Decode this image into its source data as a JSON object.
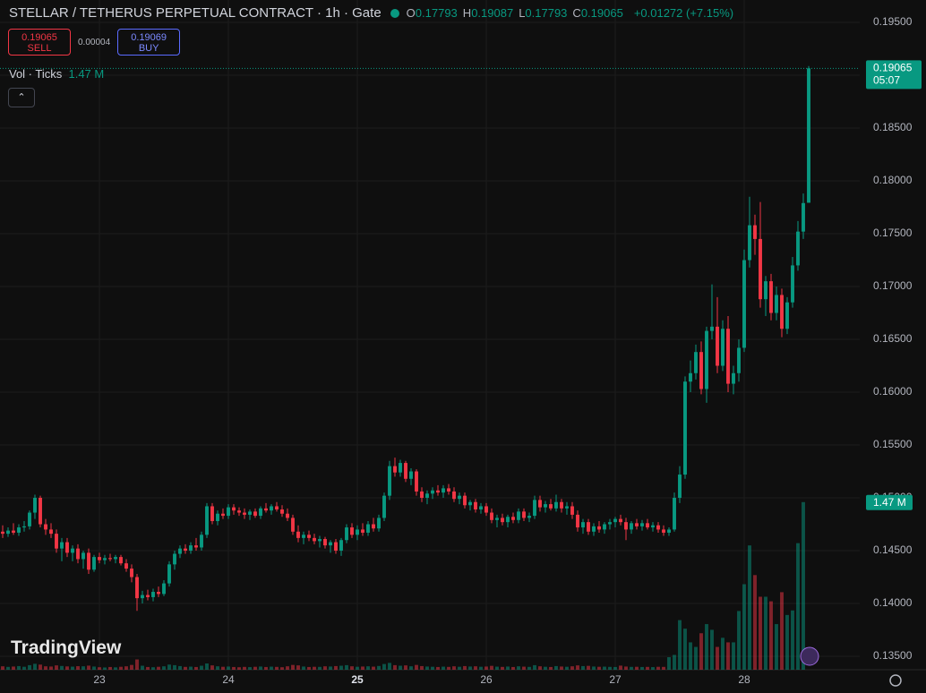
{
  "header": {
    "symbol": "STELLAR / TETHERUS PERPETUAL CONTRACT · 1h · Gate",
    "ohlc": [
      {
        "label": "O",
        "value": 0.17793
      },
      {
        "label": "H",
        "value": 0.19087
      },
      {
        "label": "L",
        "value": 0.17793
      },
      {
        "label": "C",
        "value": 0.19065
      }
    ],
    "change": "+0.01272 (+7.15%)"
  },
  "trade": {
    "sell_price": 0.19065,
    "sell_label": "SELL",
    "spread": 4e-05,
    "buy_price": 0.19069,
    "buy_label": "BUY"
  },
  "volume_legend": {
    "label": "Vol · Ticks",
    "value": "1.47 M"
  },
  "watermark": "TradingView",
  "chart_data": {
    "type": "candlestick",
    "up_color": "#089981",
    "down_color": "#f23645",
    "xlim": [
      -0.5,
      159.5
    ],
    "xticks": [
      {
        "value": 18,
        "label": "23"
      },
      {
        "value": 42,
        "label": "24"
      },
      {
        "value": 66,
        "label": "25"
      },
      {
        "value": 90,
        "label": "26"
      },
      {
        "value": 114,
        "label": "27"
      },
      {
        "value": 138,
        "label": "28"
      }
    ],
    "ylim": [
      0.13373,
      0.19712
    ],
    "yticks": [
      {
        "value": 0.135,
        "label": "0.13500"
      },
      {
        "value": 0.14,
        "label": "0.14000"
      },
      {
        "value": 0.145,
        "label": "0.14500"
      },
      {
        "value": 0.15,
        "label": "0.15000"
      },
      {
        "value": 0.155,
        "label": "0.15500"
      },
      {
        "value": 0.16,
        "label": "0.16000"
      },
      {
        "value": 0.165,
        "label": "0.16500"
      },
      {
        "value": 0.17,
        "label": "0.17000"
      },
      {
        "value": 0.175,
        "label": "0.17500"
      },
      {
        "value": 0.18,
        "label": "0.18000"
      },
      {
        "value": 0.185,
        "label": "0.18500"
      },
      {
        "value": 0.19,
        "label": "0.19000"
      },
      {
        "value": 0.195,
        "label": "0.19500"
      }
    ],
    "grid": true,
    "vlim": [
      0,
      3400000
    ],
    "last_price": 0.19065,
    "countdown": "05:07",
    "last_volume_label": "1.47 M",
    "ohlc": [
      [
        0.1468,
        0.1474,
        0.1462,
        0.1466
      ],
      [
        0.1466,
        0.1472,
        0.1463,
        0.1469
      ],
      [
        0.1469,
        0.1476,
        0.1465,
        0.1467
      ],
      [
        0.1467,
        0.1475,
        0.1464,
        0.1472
      ],
      [
        0.1472,
        0.1478,
        0.1468,
        0.1473
      ],
      [
        0.1473,
        0.1488,
        0.147,
        0.1486
      ],
      [
        0.1486,
        0.1503,
        0.148,
        0.15
      ],
      [
        0.15,
        0.1502,
        0.1472,
        0.1475
      ],
      [
        0.1475,
        0.148,
        0.1465,
        0.147
      ],
      [
        0.147,
        0.1476,
        0.1462,
        0.1466
      ],
      [
        0.1466,
        0.147,
        0.1448,
        0.1452
      ],
      [
        0.1452,
        0.1462,
        0.144,
        0.1458
      ],
      [
        0.1458,
        0.1462,
        0.1444,
        0.1448
      ],
      [
        0.1448,
        0.1455,
        0.144,
        0.1452
      ],
      [
        0.1452,
        0.1456,
        0.1438,
        0.1442
      ],
      [
        0.1442,
        0.145,
        0.1433,
        0.1448
      ],
      [
        0.1448,
        0.1452,
        0.1428,
        0.1432
      ],
      [
        0.1432,
        0.1446,
        0.143,
        0.1444
      ],
      [
        0.1444,
        0.1448,
        0.1438,
        0.1441
      ],
      [
        0.1441,
        0.1446,
        0.1437,
        0.1443
      ],
      [
        0.1443,
        0.1447,
        0.144,
        0.1442
      ],
      [
        0.1442,
        0.1446,
        0.1438,
        0.1444
      ],
      [
        0.1444,
        0.1446,
        0.1436,
        0.1438
      ],
      [
        0.1438,
        0.1442,
        0.143,
        0.1433
      ],
      [
        0.1433,
        0.1437,
        0.142,
        0.1425
      ],
      [
        0.1425,
        0.1428,
        0.1393,
        0.1405
      ],
      [
        0.1405,
        0.1412,
        0.14,
        0.1408
      ],
      [
        0.1408,
        0.1413,
        0.1403,
        0.1406
      ],
      [
        0.1406,
        0.1414,
        0.1402,
        0.1411
      ],
      [
        0.1411,
        0.1416,
        0.1406,
        0.1409
      ],
      [
        0.1409,
        0.1422,
        0.1407,
        0.1419
      ],
      [
        0.1419,
        0.144,
        0.1416,
        0.1437
      ],
      [
        0.1437,
        0.145,
        0.1432,
        0.1447
      ],
      [
        0.1447,
        0.1455,
        0.1443,
        0.1452
      ],
      [
        0.1452,
        0.1456,
        0.1447,
        0.145
      ],
      [
        0.145,
        0.1458,
        0.1447,
        0.1455
      ],
      [
        0.1455,
        0.1462,
        0.145,
        0.1453
      ],
      [
        0.1453,
        0.1468,
        0.145,
        0.1465
      ],
      [
        0.1465,
        0.1495,
        0.1462,
        0.1492
      ],
      [
        0.1492,
        0.1495,
        0.1475,
        0.1478
      ],
      [
        0.1478,
        0.1488,
        0.1474,
        0.1485
      ],
      [
        0.1485,
        0.149,
        0.148,
        0.1483
      ],
      [
        0.1483,
        0.1494,
        0.148,
        0.1491
      ],
      [
        0.1491,
        0.1494,
        0.1484,
        0.1488
      ],
      [
        0.1488,
        0.1491,
        0.1483,
        0.1486
      ],
      [
        0.1486,
        0.149,
        0.148,
        0.1484
      ],
      [
        0.1484,
        0.1489,
        0.1479,
        0.1487
      ],
      [
        0.1487,
        0.149,
        0.1481,
        0.1483
      ],
      [
        0.1483,
        0.1492,
        0.148,
        0.149
      ],
      [
        0.149,
        0.1495,
        0.1486,
        0.1488
      ],
      [
        0.1488,
        0.1494,
        0.1484,
        0.1492
      ],
      [
        0.1492,
        0.1496,
        0.1487,
        0.1489
      ],
      [
        0.1489,
        0.1493,
        0.1482,
        0.1485
      ],
      [
        0.1485,
        0.149,
        0.1478,
        0.1481
      ],
      [
        0.1481,
        0.1484,
        0.1465,
        0.1468
      ],
      [
        0.1468,
        0.1474,
        0.1458,
        0.1462
      ],
      [
        0.1462,
        0.1468,
        0.1456,
        0.1465
      ],
      [
        0.1465,
        0.1469,
        0.1459,
        0.1462
      ],
      [
        0.1462,
        0.1466,
        0.1456,
        0.1459
      ],
      [
        0.1459,
        0.1464,
        0.1453,
        0.1461
      ],
      [
        0.1461,
        0.1463,
        0.1452,
        0.1455
      ],
      [
        0.1455,
        0.146,
        0.1448,
        0.1458
      ],
      [
        0.1458,
        0.1461,
        0.1447,
        0.145
      ],
      [
        0.145,
        0.1462,
        0.1445,
        0.146
      ],
      [
        0.146,
        0.1475,
        0.1457,
        0.1472
      ],
      [
        0.1472,
        0.1476,
        0.1462,
        0.1465
      ],
      [
        0.1465,
        0.1474,
        0.146,
        0.147
      ],
      [
        0.147,
        0.1476,
        0.1464,
        0.1467
      ],
      [
        0.1467,
        0.1478,
        0.1464,
        0.1475
      ],
      [
        0.1475,
        0.1481,
        0.1468,
        0.1471
      ],
      [
        0.1471,
        0.1484,
        0.1468,
        0.1481
      ],
      [
        0.1481,
        0.1505,
        0.1478,
        0.1502
      ],
      [
        0.1502,
        0.1535,
        0.1498,
        0.153
      ],
      [
        0.153,
        0.1538,
        0.152,
        0.1524
      ],
      [
        0.1524,
        0.1536,
        0.152,
        0.1533
      ],
      [
        0.1533,
        0.1535,
        0.1515,
        0.1518
      ],
      [
        0.1518,
        0.1528,
        0.1512,
        0.1525
      ],
      [
        0.1525,
        0.1527,
        0.1502,
        0.1506
      ],
      [
        0.1506,
        0.151,
        0.1496,
        0.15
      ],
      [
        0.15,
        0.1507,
        0.1494,
        0.1504
      ],
      [
        0.1504,
        0.151,
        0.1499,
        0.1507
      ],
      [
        0.1507,
        0.1512,
        0.1502,
        0.1505
      ],
      [
        0.1505,
        0.1512,
        0.15,
        0.1509
      ],
      [
        0.1509,
        0.1513,
        0.1503,
        0.1506
      ],
      [
        0.1506,
        0.151,
        0.1496,
        0.1499
      ],
      [
        0.1499,
        0.1505,
        0.1494,
        0.1502
      ],
      [
        0.1502,
        0.1505,
        0.149,
        0.1493
      ],
      [
        0.1493,
        0.1498,
        0.1488,
        0.1496
      ],
      [
        0.1496,
        0.1499,
        0.1486,
        0.1489
      ],
      [
        0.1489,
        0.1495,
        0.1485,
        0.1492
      ],
      [
        0.1492,
        0.1495,
        0.1483,
        0.1486
      ],
      [
        0.1486,
        0.149,
        0.1476,
        0.1479
      ],
      [
        0.1479,
        0.1484,
        0.1472,
        0.1481
      ],
      [
        0.1481,
        0.1485,
        0.1474,
        0.1477
      ],
      [
        0.1477,
        0.1484,
        0.1472,
        0.1482
      ],
      [
        0.1482,
        0.1486,
        0.1476,
        0.1479
      ],
      [
        0.1479,
        0.149,
        0.1476,
        0.1487
      ],
      [
        0.1487,
        0.149,
        0.1478,
        0.1481
      ],
      [
        0.1481,
        0.1486,
        0.1477,
        0.1483
      ],
      [
        0.1483,
        0.1502,
        0.148,
        0.1498
      ],
      [
        0.1498,
        0.1502,
        0.1487,
        0.1491
      ],
      [
        0.1491,
        0.1497,
        0.1486,
        0.1494
      ],
      [
        0.1494,
        0.1499,
        0.1488,
        0.149
      ],
      [
        0.149,
        0.1503,
        0.1487,
        0.1496
      ],
      [
        0.1496,
        0.1499,
        0.1486,
        0.149
      ],
      [
        0.149,
        0.1496,
        0.1484,
        0.1492
      ],
      [
        0.1492,
        0.1496,
        0.148,
        0.1484
      ],
      [
        0.1484,
        0.1488,
        0.1468,
        0.1472
      ],
      [
        0.1472,
        0.148,
        0.1466,
        0.1477
      ],
      [
        0.1477,
        0.148,
        0.1465,
        0.1468
      ],
      [
        0.1468,
        0.1476,
        0.1464,
        0.1473
      ],
      [
        0.1473,
        0.1478,
        0.1467,
        0.147
      ],
      [
        0.147,
        0.1477,
        0.1466,
        0.1475
      ],
      [
        0.1475,
        0.148,
        0.147,
        0.1477
      ],
      [
        0.1477,
        0.1482,
        0.1472,
        0.148
      ],
      [
        0.148,
        0.1484,
        0.1474,
        0.1477
      ],
      [
        0.1477,
        0.1481,
        0.146,
        0.147
      ],
      [
        0.147,
        0.1478,
        0.1466,
        0.1476
      ],
      [
        0.1476,
        0.148,
        0.147,
        0.1473
      ],
      [
        0.1473,
        0.1479,
        0.1469,
        0.1476
      ],
      [
        0.1476,
        0.148,
        0.147,
        0.1472
      ],
      [
        0.1472,
        0.1477,
        0.1468,
        0.1474
      ],
      [
        0.1474,
        0.1477,
        0.1467,
        0.147
      ],
      [
        0.147,
        0.1474,
        0.1464,
        0.1467
      ],
      [
        0.1467,
        0.1472,
        0.1464,
        0.147
      ],
      [
        0.147,
        0.1505,
        0.1468,
        0.15
      ],
      [
        0.15,
        0.153,
        0.1495,
        0.1522
      ],
      [
        0.1522,
        0.1615,
        0.1518,
        0.161
      ],
      [
        0.161,
        0.163,
        0.16,
        0.1618
      ],
      [
        0.1618,
        0.1645,
        0.1612,
        0.1638
      ],
      [
        0.1638,
        0.1648,
        0.1598,
        0.1603
      ],
      [
        0.1603,
        0.1662,
        0.159,
        0.1658
      ],
      [
        0.1658,
        0.1702,
        0.165,
        0.1662
      ],
      [
        0.1662,
        0.169,
        0.1618,
        0.1625
      ],
      [
        0.1625,
        0.1668,
        0.162,
        0.166
      ],
      [
        0.166,
        0.1672,
        0.16,
        0.1608
      ],
      [
        0.1608,
        0.1625,
        0.1598,
        0.1618
      ],
      [
        0.1618,
        0.165,
        0.161,
        0.1642
      ],
      [
        0.1642,
        0.1735,
        0.1638,
        0.1725
      ],
      [
        0.1725,
        0.1785,
        0.1718,
        0.1758
      ],
      [
        0.1758,
        0.1768,
        0.173,
        0.1745
      ],
      [
        0.1745,
        0.178,
        0.168,
        0.1688
      ],
      [
        0.1688,
        0.171,
        0.1672,
        0.1705
      ],
      [
        0.1705,
        0.1712,
        0.1668,
        0.1675
      ],
      [
        0.1675,
        0.17,
        0.1668,
        0.1692
      ],
      [
        0.1692,
        0.1698,
        0.1652,
        0.166
      ],
      [
        0.166,
        0.169,
        0.1655,
        0.1685
      ],
      [
        0.1685,
        0.1728,
        0.168,
        0.172
      ],
      [
        0.172,
        0.1762,
        0.1715,
        0.1752
      ],
      [
        0.1752,
        0.1788,
        0.1745,
        0.1779
      ],
      [
        0.17793,
        0.19087,
        0.17793,
        0.19065
      ]
    ],
    "volume": [
      30000,
      25000,
      28000,
      32000,
      26000,
      40000,
      52000,
      45000,
      30000,
      28000,
      38000,
      33000,
      29000,
      27000,
      31000,
      30000,
      36000,
      28000,
      22000,
      20000,
      24000,
      21000,
      26000,
      30000,
      42000,
      90000,
      35000,
      24000,
      22000,
      26000,
      30000,
      45000,
      40000,
      32000,
      25000,
      27000,
      24000,
      35000,
      55000,
      38000,
      30000,
      26000,
      28000,
      24000,
      22000,
      25000,
      23000,
      26000,
      28000,
      24000,
      27000,
      25000,
      22000,
      30000,
      42000,
      38000,
      28000,
      24000,
      26000,
      25000,
      30000,
      28000,
      32000,
      35000,
      40000,
      30000,
      26000,
      28000,
      30000,
      27000,
      33000,
      50000,
      60000,
      40000,
      35000,
      38000,
      30000,
      42000,
      32000,
      28000,
      26000,
      24000,
      27000,
      25000,
      30000,
      26000,
      32000,
      28000,
      30000,
      26000,
      28000,
      34000,
      27000,
      25000,
      28000,
      24000,
      30000,
      27000,
      25000,
      40000,
      30000,
      26000,
      24000,
      32000,
      28000,
      26000,
      30000,
      38000,
      32000,
      34000,
      28000,
      26000,
      27000,
      25000,
      24000,
      36000,
      28000,
      25000,
      26000,
      24000,
      25000,
      23000,
      26000,
      25000,
      110000,
      130000,
      435000,
      360000,
      240000,
      200000,
      320000,
      400000,
      350000,
      200000,
      280000,
      240000,
      240000,
      515000,
      750000,
      1090000,
      830000,
      640000,
      640000,
      600000,
      400000,
      680000,
      480000,
      520000,
      1110000,
      1470000
    ]
  }
}
